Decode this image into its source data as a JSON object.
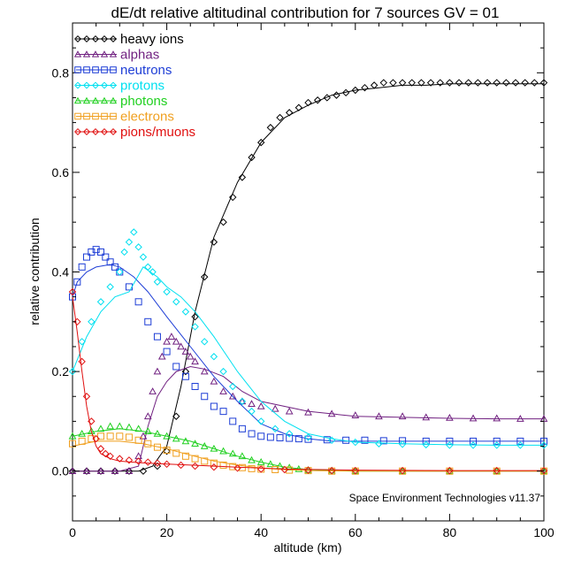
{
  "chart_data": {
    "type": "line",
    "title": "dE/dt relative altitudinal contribution for 7 sources GV = 01",
    "xlabel": "altitude (km)",
    "ylabel": "relative contribution",
    "xlim": [
      0,
      100
    ],
    "ylim": [
      -0.1,
      0.9
    ],
    "xticks": [
      0,
      20,
      40,
      60,
      80,
      100
    ],
    "yticks": [
      0.0,
      0.2,
      0.4,
      0.6,
      0.8
    ],
    "xtick_labels": [
      "0",
      "20",
      "40",
      "60",
      "80",
      "100"
    ],
    "ytick_labels": [
      "0.0",
      "0.2",
      "0.4",
      "0.6",
      "0.8"
    ],
    "legend_position": "top-left",
    "credit": "Space Environment Technologies v11.37",
    "series": [
      {
        "name": "heavy ions",
        "color": "#000000",
        "marker": "diamond",
        "fit_x": [
          0,
          10,
          14,
          17,
          20,
          23,
          26,
          30,
          35,
          40,
          45,
          50,
          55,
          60,
          65,
          70,
          75,
          80,
          90,
          100
        ],
        "fit_y": [
          0,
          0,
          0,
          0.01,
          0.05,
          0.17,
          0.32,
          0.47,
          0.58,
          0.66,
          0.71,
          0.735,
          0.755,
          0.765,
          0.77,
          0.775,
          0.775,
          0.778,
          0.778,
          0.778
        ],
        "points_x": [
          0,
          3,
          6,
          9,
          12,
          15,
          18,
          20,
          22,
          24,
          26,
          28,
          30,
          32,
          34,
          36,
          38,
          40,
          42,
          44,
          46,
          48,
          50,
          52,
          54,
          56,
          58,
          60,
          62,
          64,
          66,
          68,
          70,
          72,
          74,
          76,
          78,
          80,
          82,
          84,
          86,
          88,
          90,
          92,
          94,
          96,
          98,
          100
        ],
        "points_y": [
          0,
          0,
          0,
          0,
          0,
          0,
          0.01,
          0.04,
          0.11,
          0.2,
          0.31,
          0.39,
          0.46,
          0.5,
          0.55,
          0.59,
          0.63,
          0.66,
          0.69,
          0.71,
          0.72,
          0.73,
          0.74,
          0.745,
          0.75,
          0.755,
          0.76,
          0.765,
          0.77,
          0.775,
          0.78,
          0.78,
          0.78,
          0.78,
          0.78,
          0.78,
          0.78,
          0.78,
          0.78,
          0.78,
          0.78,
          0.78,
          0.78,
          0.78,
          0.78,
          0.78,
          0.78,
          0.78
        ]
      },
      {
        "name": "alphas",
        "color": "#702080",
        "marker": "triangle",
        "fit_x": [
          0,
          10,
          14,
          16,
          18,
          20,
          22,
          25,
          28,
          32,
          36,
          40,
          50,
          60,
          70,
          80,
          90,
          100
        ],
        "fit_y": [
          0,
          0,
          0.01,
          0.09,
          0.15,
          0.18,
          0.2,
          0.21,
          0.205,
          0.19,
          0.16,
          0.14,
          0.12,
          0.11,
          0.108,
          0.106,
          0.105,
          0.105
        ],
        "points_x": [
          0,
          3,
          6,
          9,
          12,
          14,
          15,
          16,
          17,
          18,
          19,
          20,
          21,
          22,
          23,
          24,
          25,
          26,
          28,
          30,
          32,
          34,
          36,
          38,
          40,
          43,
          46,
          50,
          55,
          60,
          65,
          70,
          75,
          80,
          85,
          90,
          95,
          100
        ],
        "points_y": [
          0,
          0,
          0,
          0,
          0,
          0.03,
          0.07,
          0.11,
          0.16,
          0.2,
          0.23,
          0.26,
          0.27,
          0.26,
          0.25,
          0.24,
          0.23,
          0.22,
          0.2,
          0.18,
          0.16,
          0.15,
          0.14,
          0.135,
          0.13,
          0.125,
          0.12,
          0.118,
          0.115,
          0.112,
          0.11,
          0.11,
          0.108,
          0.107,
          0.106,
          0.106,
          0.105,
          0.105
        ]
      },
      {
        "name": "neutrons",
        "color": "#1e3ed6",
        "marker": "square",
        "fit_x": [
          0,
          1,
          3,
          5,
          8,
          10,
          13,
          16,
          20,
          25,
          30,
          35,
          40,
          45,
          50,
          55,
          60,
          70,
          80,
          90,
          100
        ],
        "fit_y": [
          0.35,
          0.38,
          0.4,
          0.41,
          0.415,
          0.41,
          0.39,
          0.36,
          0.31,
          0.25,
          0.19,
          0.14,
          0.095,
          0.075,
          0.065,
          0.06,
          0.06,
          0.06,
          0.06,
          0.06,
          0.06
        ],
        "points_x": [
          0,
          1,
          2,
          3,
          4,
          5,
          6,
          7,
          8,
          9,
          10,
          12,
          14,
          16,
          18,
          20,
          22,
          24,
          26,
          28,
          30,
          32,
          34,
          36,
          38,
          40,
          42,
          44,
          46,
          48,
          50,
          54,
          58,
          62,
          66,
          70,
          75,
          80,
          85,
          90,
          95,
          100
        ],
        "points_y": [
          0.35,
          0.38,
          0.41,
          0.43,
          0.44,
          0.445,
          0.44,
          0.43,
          0.42,
          0.41,
          0.4,
          0.37,
          0.34,
          0.3,
          0.27,
          0.24,
          0.21,
          0.19,
          0.17,
          0.15,
          0.13,
          0.12,
          0.1,
          0.085,
          0.075,
          0.07,
          0.068,
          0.067,
          0.066,
          0.065,
          0.064,
          0.063,
          0.062,
          0.062,
          0.061,
          0.061,
          0.06,
          0.06,
          0.06,
          0.06,
          0.06,
          0.06
        ]
      },
      {
        "name": "protons",
        "color": "#00e0f0",
        "marker": "diamond",
        "fit_x": [
          0,
          3,
          6,
          9,
          12,
          15,
          18,
          20,
          23,
          26,
          30,
          35,
          40,
          45,
          50,
          55,
          60,
          70,
          80,
          90,
          100
        ],
        "fit_y": [
          0.2,
          0.27,
          0.32,
          0.35,
          0.36,
          0.41,
          0.39,
          0.37,
          0.35,
          0.32,
          0.27,
          0.2,
          0.14,
          0.1,
          0.075,
          0.065,
          0.058,
          0.055,
          0.053,
          0.052,
          0.052
        ],
        "points_x": [
          0,
          2,
          4,
          6,
          8,
          10,
          11,
          12,
          13,
          14,
          15,
          16,
          17,
          18,
          20,
          22,
          24,
          26,
          28,
          30,
          32,
          34,
          36,
          38,
          40,
          43,
          46,
          50,
          55,
          60,
          65,
          70,
          75,
          80,
          85,
          90,
          95,
          100
        ],
        "points_y": [
          0.2,
          0.26,
          0.3,
          0.34,
          0.37,
          0.4,
          0.44,
          0.46,
          0.48,
          0.45,
          0.43,
          0.41,
          0.4,
          0.38,
          0.36,
          0.34,
          0.32,
          0.29,
          0.26,
          0.23,
          0.2,
          0.17,
          0.14,
          0.12,
          0.1,
          0.085,
          0.075,
          0.068,
          0.062,
          0.058,
          0.055,
          0.054,
          0.053,
          0.052,
          0.052,
          0.052,
          0.052,
          0.052
        ]
      },
      {
        "name": "photons",
        "color": "#20d020",
        "marker": "triangle",
        "fit_x": [
          0,
          5,
          10,
          15,
          20,
          25,
          30,
          35,
          40,
          45,
          50,
          55,
          60,
          70,
          80,
          90,
          100
        ],
        "fit_y": [
          0.07,
          0.08,
          0.085,
          0.08,
          0.07,
          0.06,
          0.045,
          0.03,
          0.018,
          0.008,
          0.003,
          0.001,
          0,
          0,
          0,
          0,
          0
        ],
        "points_x": [
          0,
          2,
          4,
          6,
          8,
          10,
          12,
          14,
          16,
          18,
          20,
          22,
          24,
          26,
          28,
          30,
          32,
          34,
          36,
          38,
          40,
          42,
          44,
          46,
          48,
          50,
          55,
          60,
          70,
          80,
          90,
          100
        ],
        "points_y": [
          0.07,
          0.075,
          0.08,
          0.085,
          0.09,
          0.09,
          0.088,
          0.085,
          0.08,
          0.075,
          0.07,
          0.065,
          0.06,
          0.055,
          0.05,
          0.045,
          0.04,
          0.035,
          0.03,
          0.022,
          0.018,
          0.014,
          0.01,
          0.007,
          0.004,
          0.002,
          0.001,
          0,
          0,
          0,
          0,
          0
        ]
      },
      {
        "name": "electrons",
        "color": "#f0a020",
        "marker": "square",
        "fit_x": [
          0,
          5,
          10,
          15,
          20,
          25,
          30,
          35,
          40,
          45,
          50,
          60,
          70,
          80,
          90,
          100
        ],
        "fit_y": [
          0.05,
          0.06,
          0.06,
          0.055,
          0.045,
          0.032,
          0.02,
          0.012,
          0.006,
          0.003,
          0.001,
          0,
          0,
          0,
          0,
          0
        ],
        "points_x": [
          0,
          2,
          4,
          6,
          8,
          10,
          12,
          14,
          16,
          18,
          20,
          22,
          24,
          26,
          28,
          30,
          32,
          34,
          36,
          38,
          40,
          43,
          46,
          50,
          55,
          60,
          70,
          80,
          90,
          100
        ],
        "points_y": [
          0.055,
          0.06,
          0.065,
          0.07,
          0.07,
          0.07,
          0.068,
          0.062,
          0.055,
          0.048,
          0.042,
          0.036,
          0.03,
          0.025,
          0.02,
          0.016,
          0.012,
          0.009,
          0.007,
          0.005,
          0.004,
          0.003,
          0.002,
          0.001,
          0,
          0,
          0,
          0,
          0,
          0
        ]
      },
      {
        "name": "pions/muons",
        "color": "#e01010",
        "marker": "diamond",
        "fit_x": [
          0,
          1,
          2,
          3,
          4,
          5,
          6,
          8,
          10,
          14,
          18,
          25,
          35,
          45,
          60,
          80,
          100
        ],
        "fit_y": [
          0.35,
          0.28,
          0.2,
          0.13,
          0.08,
          0.05,
          0.035,
          0.025,
          0.02,
          0.017,
          0.015,
          0.012,
          0.008,
          0.004,
          0.002,
          0.001,
          0.001
        ],
        "points_x": [
          0,
          1,
          2,
          3,
          4,
          5,
          6,
          7,
          8,
          10,
          12,
          14,
          16,
          18,
          20,
          23,
          26,
          30,
          35,
          40,
          45,
          50,
          55,
          60,
          70,
          80,
          90,
          100
        ],
        "points_y": [
          0.36,
          0.3,
          0.22,
          0.15,
          0.1,
          0.065,
          0.045,
          0.035,
          0.03,
          0.025,
          0.022,
          0.02,
          0.018,
          0.016,
          0.014,
          0.012,
          0.01,
          0.008,
          0.006,
          0.004,
          0.003,
          0.002,
          0.001,
          0.001,
          0.001,
          0.001,
          0.001,
          0.001
        ]
      }
    ]
  }
}
